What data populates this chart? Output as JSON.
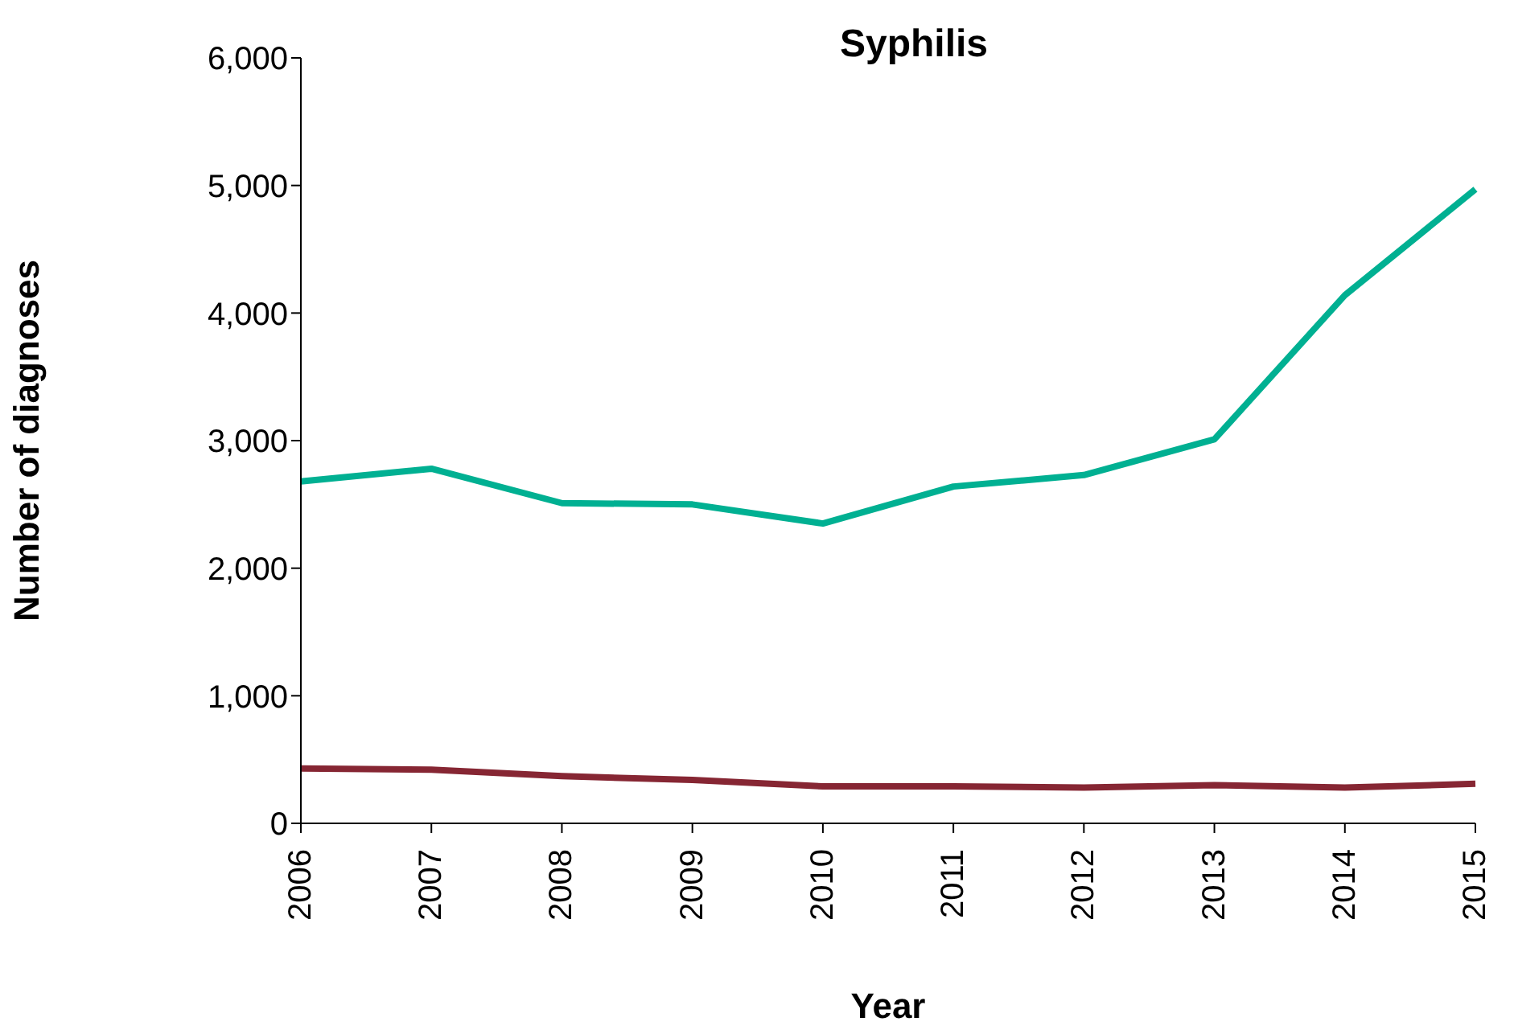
{
  "chart_data": {
    "type": "line",
    "title": "Syphilis",
    "xlabel": "Year",
    "ylabel": "Number of diagnoses",
    "categories": [
      "2006",
      "2007",
      "2008",
      "2009",
      "2010",
      "2011",
      "2012",
      "2013",
      "2014",
      "2015"
    ],
    "series": [
      {
        "color": "#00b092",
        "values": [
          2680,
          2780,
          2510,
          2500,
          2350,
          2640,
          2730,
          3010,
          4140,
          4970
        ]
      },
      {
        "color": "#862633",
        "values": [
          430,
          420,
          370,
          340,
          290,
          290,
          280,
          300,
          280,
          310
        ]
      }
    ],
    "ylim": [
      0,
      6000
    ],
    "yticks": [
      0,
      {
        "value": 1000,
        "label": "1,000"
      },
      {
        "value": 2000,
        "label": "2,000"
      },
      {
        "value": 3000,
        "label": "3,000"
      },
      {
        "value": 4000,
        "label": "4,000"
      },
      {
        "value": 5000,
        "label": "5,000"
      },
      {
        "value": 6000,
        "label": "6,000"
      }
    ],
    "grid": false,
    "marker": "none",
    "line_style": "solid"
  }
}
